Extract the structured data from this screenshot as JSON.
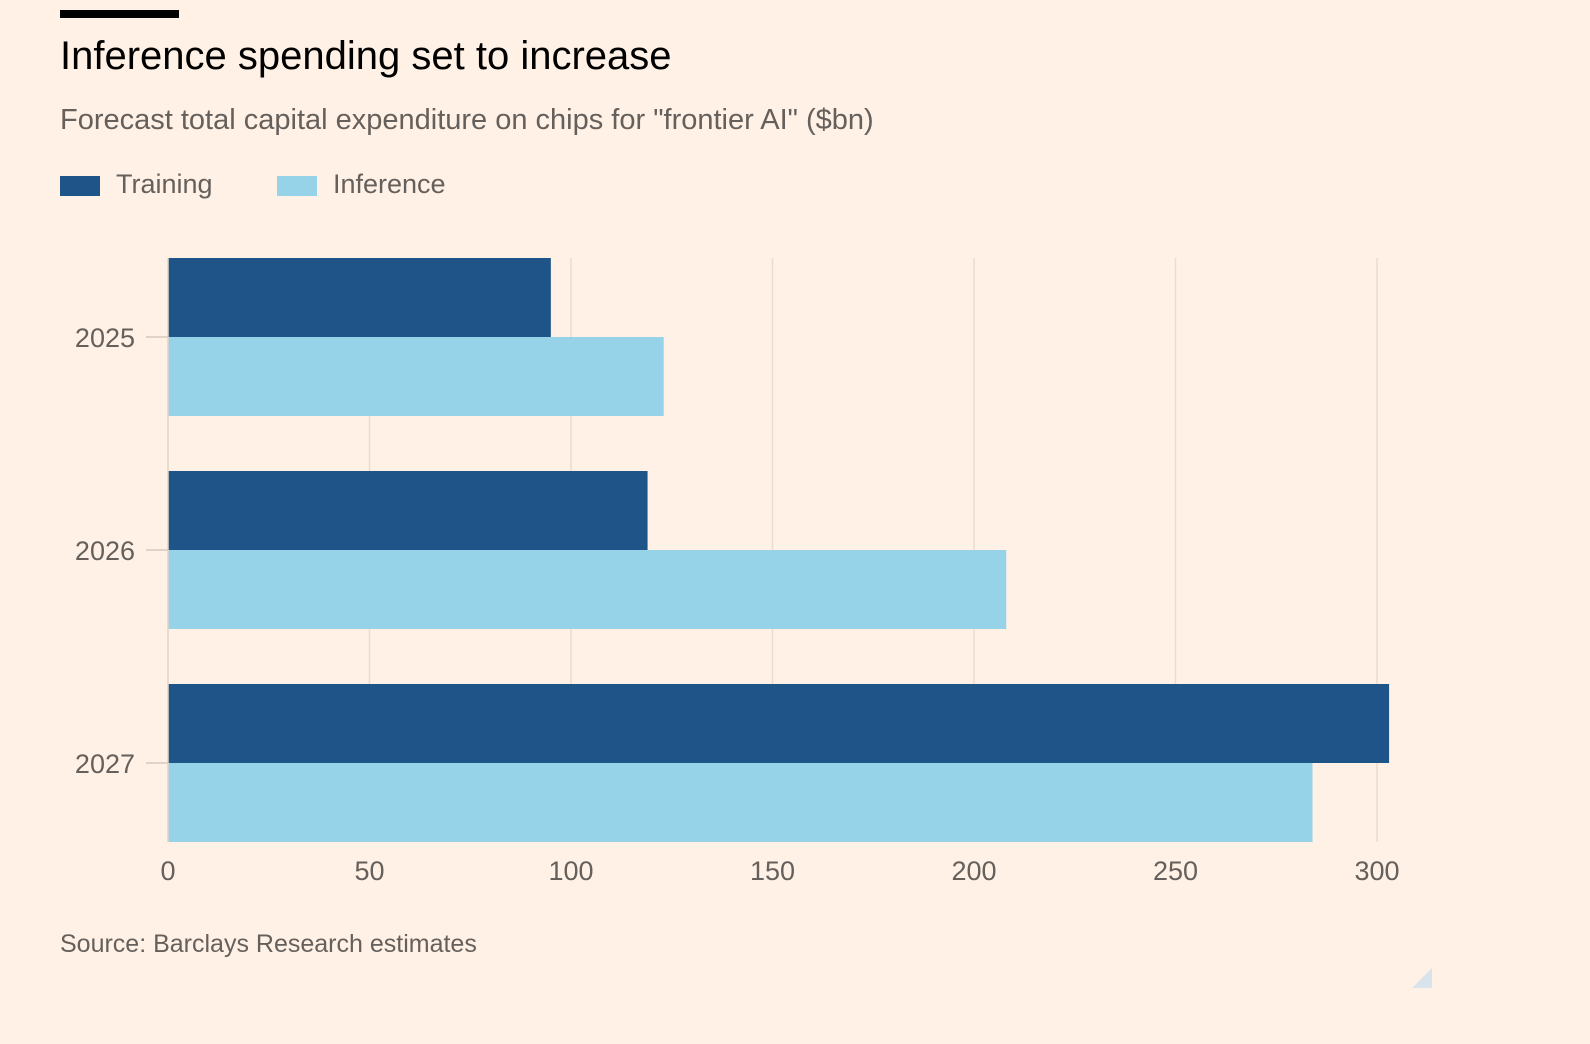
{
  "header": {
    "title": "Inference spending set to increase",
    "subtitle": "Forecast total capital expenditure on chips for \"frontier AI\" ($bn)"
  },
  "legend": [
    {
      "label": "Training",
      "color": "#1f5489"
    },
    {
      "label": "Inference",
      "color": "#96d3e8"
    }
  ],
  "chart_data": {
    "type": "bar",
    "orientation": "horizontal",
    "title": "Inference spending set to increase",
    "subtitle": "Forecast total capital expenditure on chips for \"frontier AI\" ($bn)",
    "categories": [
      "2025",
      "2026",
      "2027"
    ],
    "series": [
      {
        "name": "Training",
        "values": [
          95,
          119,
          303
        ],
        "color": "#1f5489"
      },
      {
        "name": "Inference",
        "values": [
          123,
          208,
          284
        ],
        "color": "#96d3e8"
      }
    ],
    "xlim": [
      0,
      300
    ],
    "xticks": [
      0,
      50,
      100,
      150,
      200,
      250,
      300
    ],
    "xlabel": "",
    "ylabel": "",
    "grid": true,
    "legend_position": "top-left"
  },
  "footer": {
    "source": "Source: Barclays Research estimates"
  }
}
